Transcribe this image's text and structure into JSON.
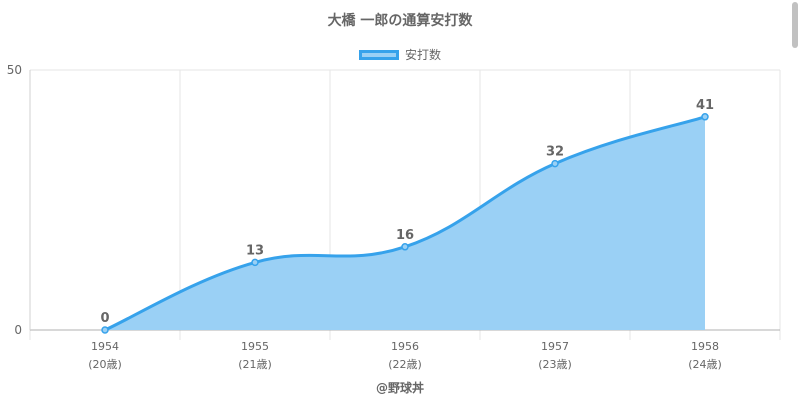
{
  "colors": {
    "fill": "#9ad0f5",
    "line": "#36a2eb",
    "grid": "#e6e6e6",
    "text": "#666666"
  },
  "credit": "@野球丼",
  "chart_data": {
    "type": "area",
    "title": "大橋 一郎の通算安打数",
    "legend": {
      "position": "top",
      "labels": [
        "安打数"
      ]
    },
    "categories": [
      "1954",
      "1955",
      "1956",
      "1957",
      "1958"
    ],
    "category_sublabels": [
      "(20歳)",
      "(21歳)",
      "(22歳)",
      "(23歳)",
      "(24歳)"
    ],
    "series": [
      {
        "name": "安打数",
        "values": [
          0,
          13,
          16,
          32,
          41
        ]
      }
    ],
    "y_ticks": [
      "0",
      "50"
    ],
    "ylim": [
      0,
      50
    ],
    "grid": true,
    "data_labels": true
  }
}
